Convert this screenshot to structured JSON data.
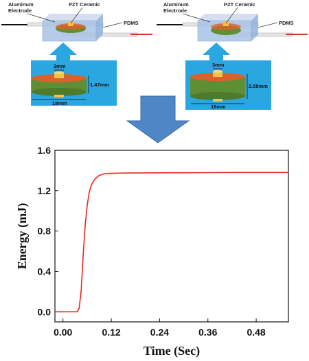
{
  "diagram": {
    "labels": {
      "aluminum_electrode_line1": "Aluminum",
      "aluminum_electrode_line2": "Electrode",
      "pzt_ceramic": "PZT Ceramic",
      "pdms": "PDMS"
    },
    "left_disc": {
      "electrode_width": "3mm",
      "thickness": "1.47mm",
      "diameter": "18mm"
    },
    "right_disc": {
      "electrode_width": "3mm",
      "thickness": "2.58mm",
      "diameter": "18mm"
    },
    "colors": {
      "panel_blue": "#2aa7e1",
      "arrow_blue": "#4f86c6",
      "pzt_green": "#5f8f35",
      "pzt_top_orange": "#d9622b",
      "electrode_yellow": "#f0c24a",
      "pdms_box": "#a9c4e6"
    }
  },
  "chart_data": {
    "type": "line",
    "title": "",
    "xlabel": "Time (Sec)",
    "ylabel": "Energy (mJ)",
    "xlim": [
      -0.02,
      0.56
    ],
    "ylim": [
      -0.1,
      1.6
    ],
    "xticks": [
      "0.00",
      "0.12",
      "0.24",
      "0.36",
      "0.48"
    ],
    "xtick_values": [
      0.0,
      0.12,
      0.24,
      0.36,
      0.48
    ],
    "yticks": [
      "0.0",
      "0.4",
      "0.8",
      "1.2",
      "1.6"
    ],
    "ytick_values": [
      0.0,
      0.4,
      0.8,
      1.2,
      1.6
    ],
    "grid": false,
    "line_color": "#e8261f",
    "series": [
      {
        "x": [
          -0.02,
          0.0,
          0.02,
          0.035,
          0.04,
          0.045,
          0.05,
          0.055,
          0.06,
          0.065,
          0.07,
          0.075,
          0.08,
          0.09,
          0.1,
          0.11,
          0.12,
          0.14,
          0.16,
          0.2,
          0.24,
          0.3,
          0.36,
          0.42,
          0.48,
          0.54,
          0.56
        ],
        "y": [
          0.0,
          0.0,
          0.0,
          0.0,
          0.03,
          0.2,
          0.55,
          0.85,
          1.05,
          1.18,
          1.25,
          1.29,
          1.32,
          1.35,
          1.365,
          1.37,
          1.372,
          1.374,
          1.375,
          1.376,
          1.377,
          1.378,
          1.379,
          1.38,
          1.38,
          1.38,
          1.38
        ]
      }
    ]
  }
}
